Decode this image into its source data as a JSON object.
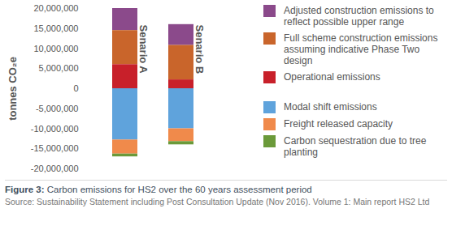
{
  "chart_data": {
    "type": "bar",
    "title": "Figure 3: Carbon emissions for HS2 over the 60 years assessment period",
    "source": "Source: Sustainability Statement including Post Consultation Update (Nov 2016). Volume 1: Main report HS2 Ltd",
    "ylabel": "tonnes CO₂e",
    "categories": [
      "Senario A",
      "Senario B"
    ],
    "series": [
      {
        "name": "Adjusted construction emissions to reflect possible upper range",
        "color": "#8b4a8b",
        "values": [
          5500000,
          5200000
        ]
      },
      {
        "name": "Full scheme construction emissions assuming indicative Phase Two design",
        "color": "#c9652b",
        "values": [
          8500000,
          8600000
        ]
      },
      {
        "name": "Operational emissions",
        "color": "#c8202a",
        "values": [
          6000000,
          2200000
        ]
      },
      {
        "name": "Modal shift emissions",
        "color": "#5fa3dc",
        "values": [
          -12800000,
          -10000000
        ]
      },
      {
        "name": "Freight released capacity",
        "color": "#f08a4b",
        "values": [
          -3500000,
          -3200000
        ]
      },
      {
        "name": "Carbon sequestration due to tree planting",
        "color": "#6b9a3a",
        "values": [
          -700000,
          -800000
        ]
      }
    ],
    "ylim": [
      -20000000,
      20000000
    ],
    "yticks": [
      {
        "value": -20000000,
        "label": "-20,000,000"
      },
      {
        "value": -15000000,
        "label": "-15,000,000"
      },
      {
        "value": -10000000,
        "label": "-10,000,000"
      },
      {
        "value": -5000000,
        "label": "-5,000,000"
      },
      0,
      {
        "value": 5000000,
        "label": "5,000,000"
      },
      {
        "value": 10000000,
        "label": "10,000,000"
      },
      {
        "value": 15000000,
        "label": "15,000,000"
      },
      {
        "value": 20000000,
        "label": "20,000,000"
      }
    ],
    "stacked": true,
    "legend": "right",
    "grid": false
  }
}
